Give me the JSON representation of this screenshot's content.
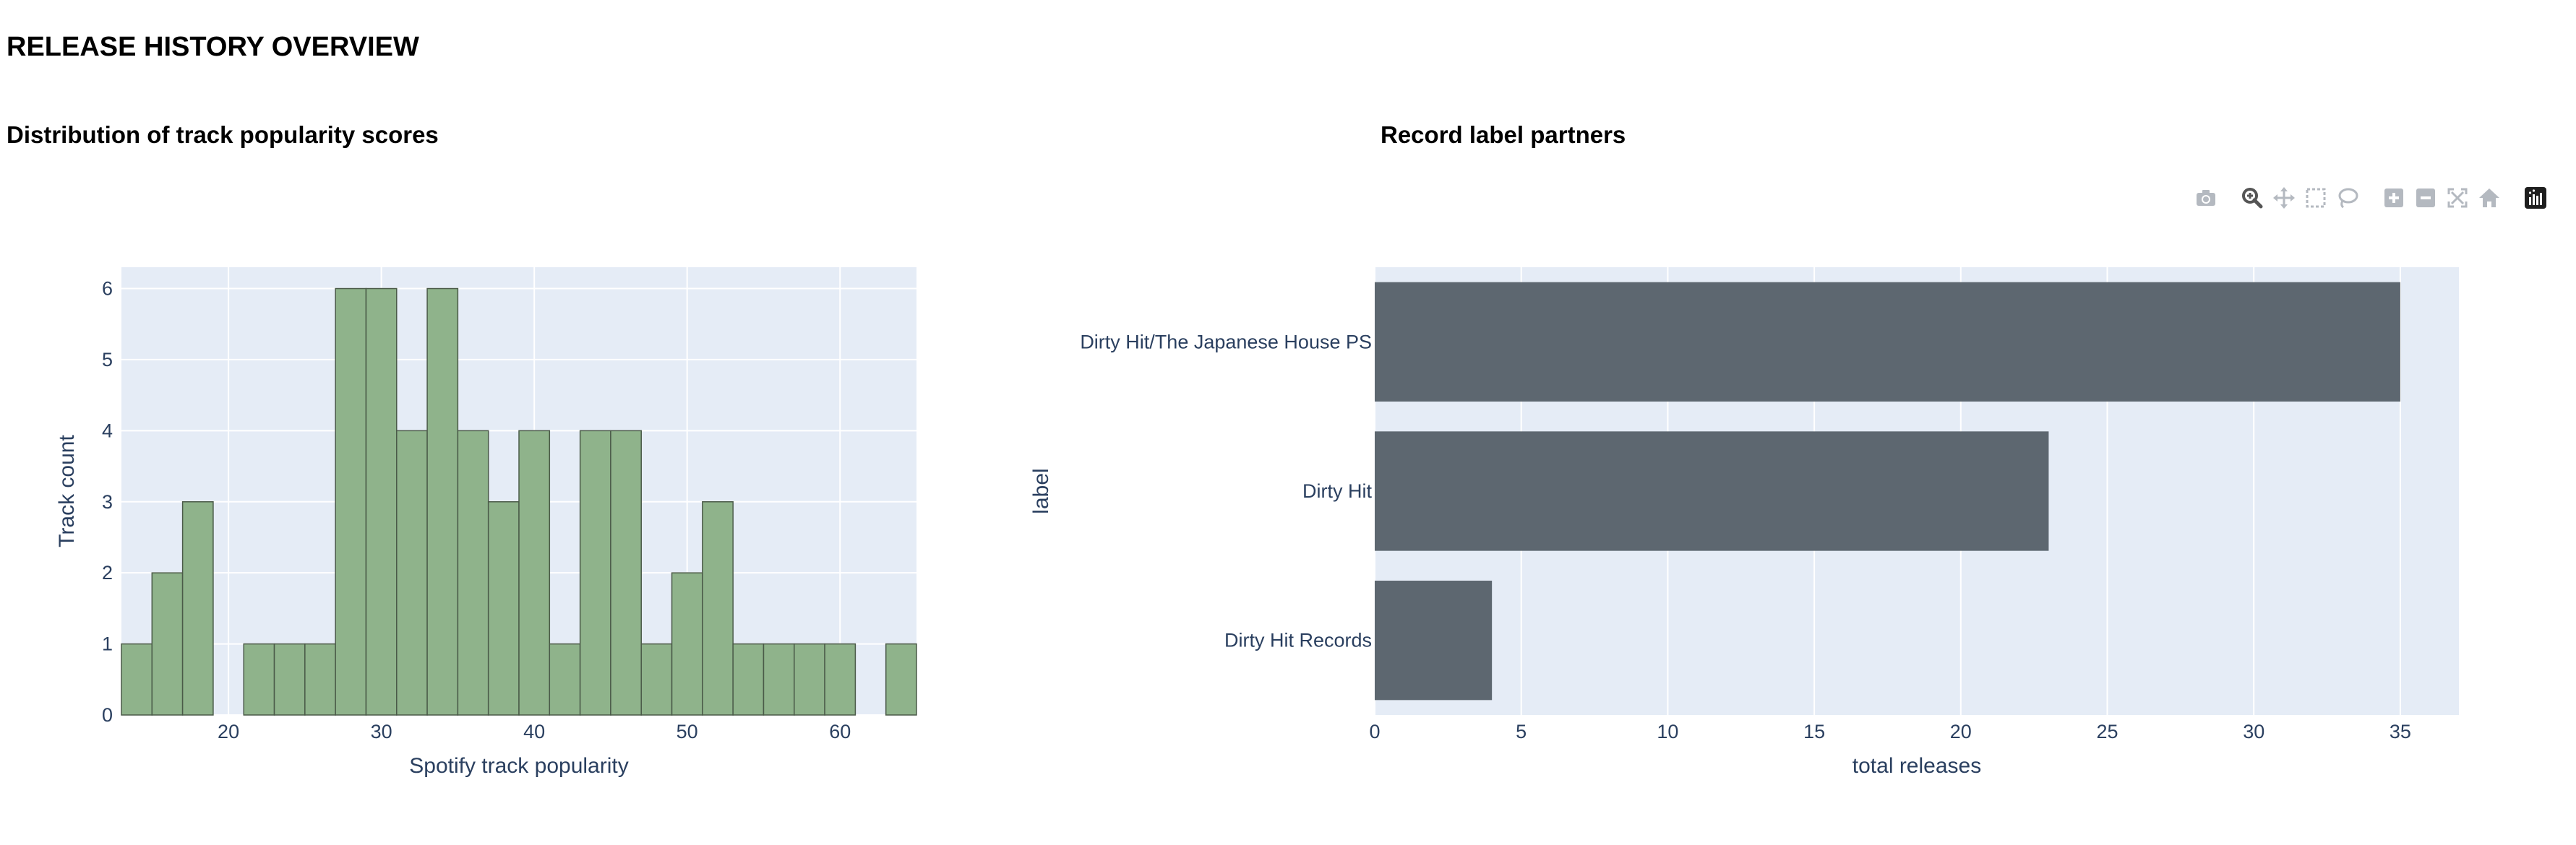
{
  "page": {
    "title": "RELEASE HISTORY OVERVIEW"
  },
  "colors": {
    "histogram_fill": "#8fb38b",
    "histogram_stroke": "#4a5a48",
    "bar_fill": "#5d6770",
    "plot_bg": "#e5ecf6",
    "grid": "#ffffff",
    "tick_text": "#2a3f5f"
  },
  "modebar": {
    "buttons": [
      "camera-icon",
      "zoom-icon",
      "pan-icon",
      "box-select-icon",
      "lasso-select-icon",
      "zoom-in-icon",
      "zoom-out-icon",
      "autoscale-icon",
      "reset-axes-icon",
      "plotly-logo-icon"
    ]
  },
  "chart_data": [
    {
      "type": "bar",
      "subtype": "histogram",
      "title": "Distribution of track popularity scores",
      "xlabel": "Spotify track popularity",
      "ylabel": "Track count",
      "bin_width": 2,
      "bin_starts": [
        13,
        15,
        17,
        19,
        21,
        23,
        25,
        27,
        29,
        31,
        33,
        35,
        37,
        39,
        41,
        43,
        45,
        47,
        49,
        51,
        53,
        55,
        57,
        59,
        61,
        63
      ],
      "values": [
        1,
        2,
        3,
        0,
        1,
        1,
        1,
        6,
        6,
        4,
        6,
        4,
        3,
        4,
        1,
        4,
        4,
        1,
        2,
        3,
        1,
        1,
        1,
        1,
        0,
        1
      ],
      "xlim": [
        13,
        65
      ],
      "ylim": [
        0,
        6.3
      ],
      "xticks": [
        20,
        30,
        40,
        50,
        60
      ],
      "yticks": [
        0,
        1,
        2,
        3,
        4,
        5,
        6
      ],
      "grid": true
    },
    {
      "type": "bar",
      "orientation": "horizontal",
      "title": "Record label partners",
      "xlabel": "total releases",
      "ylabel": "label",
      "categories": [
        "Dirty Hit/The Japanese House PS",
        "Dirty Hit",
        "Dirty Hit Records"
      ],
      "values": [
        35,
        23,
        4
      ],
      "xlim": [
        0,
        37
      ],
      "xticks": [
        0,
        5,
        10,
        15,
        20,
        25,
        30,
        35
      ],
      "grid": true
    }
  ]
}
